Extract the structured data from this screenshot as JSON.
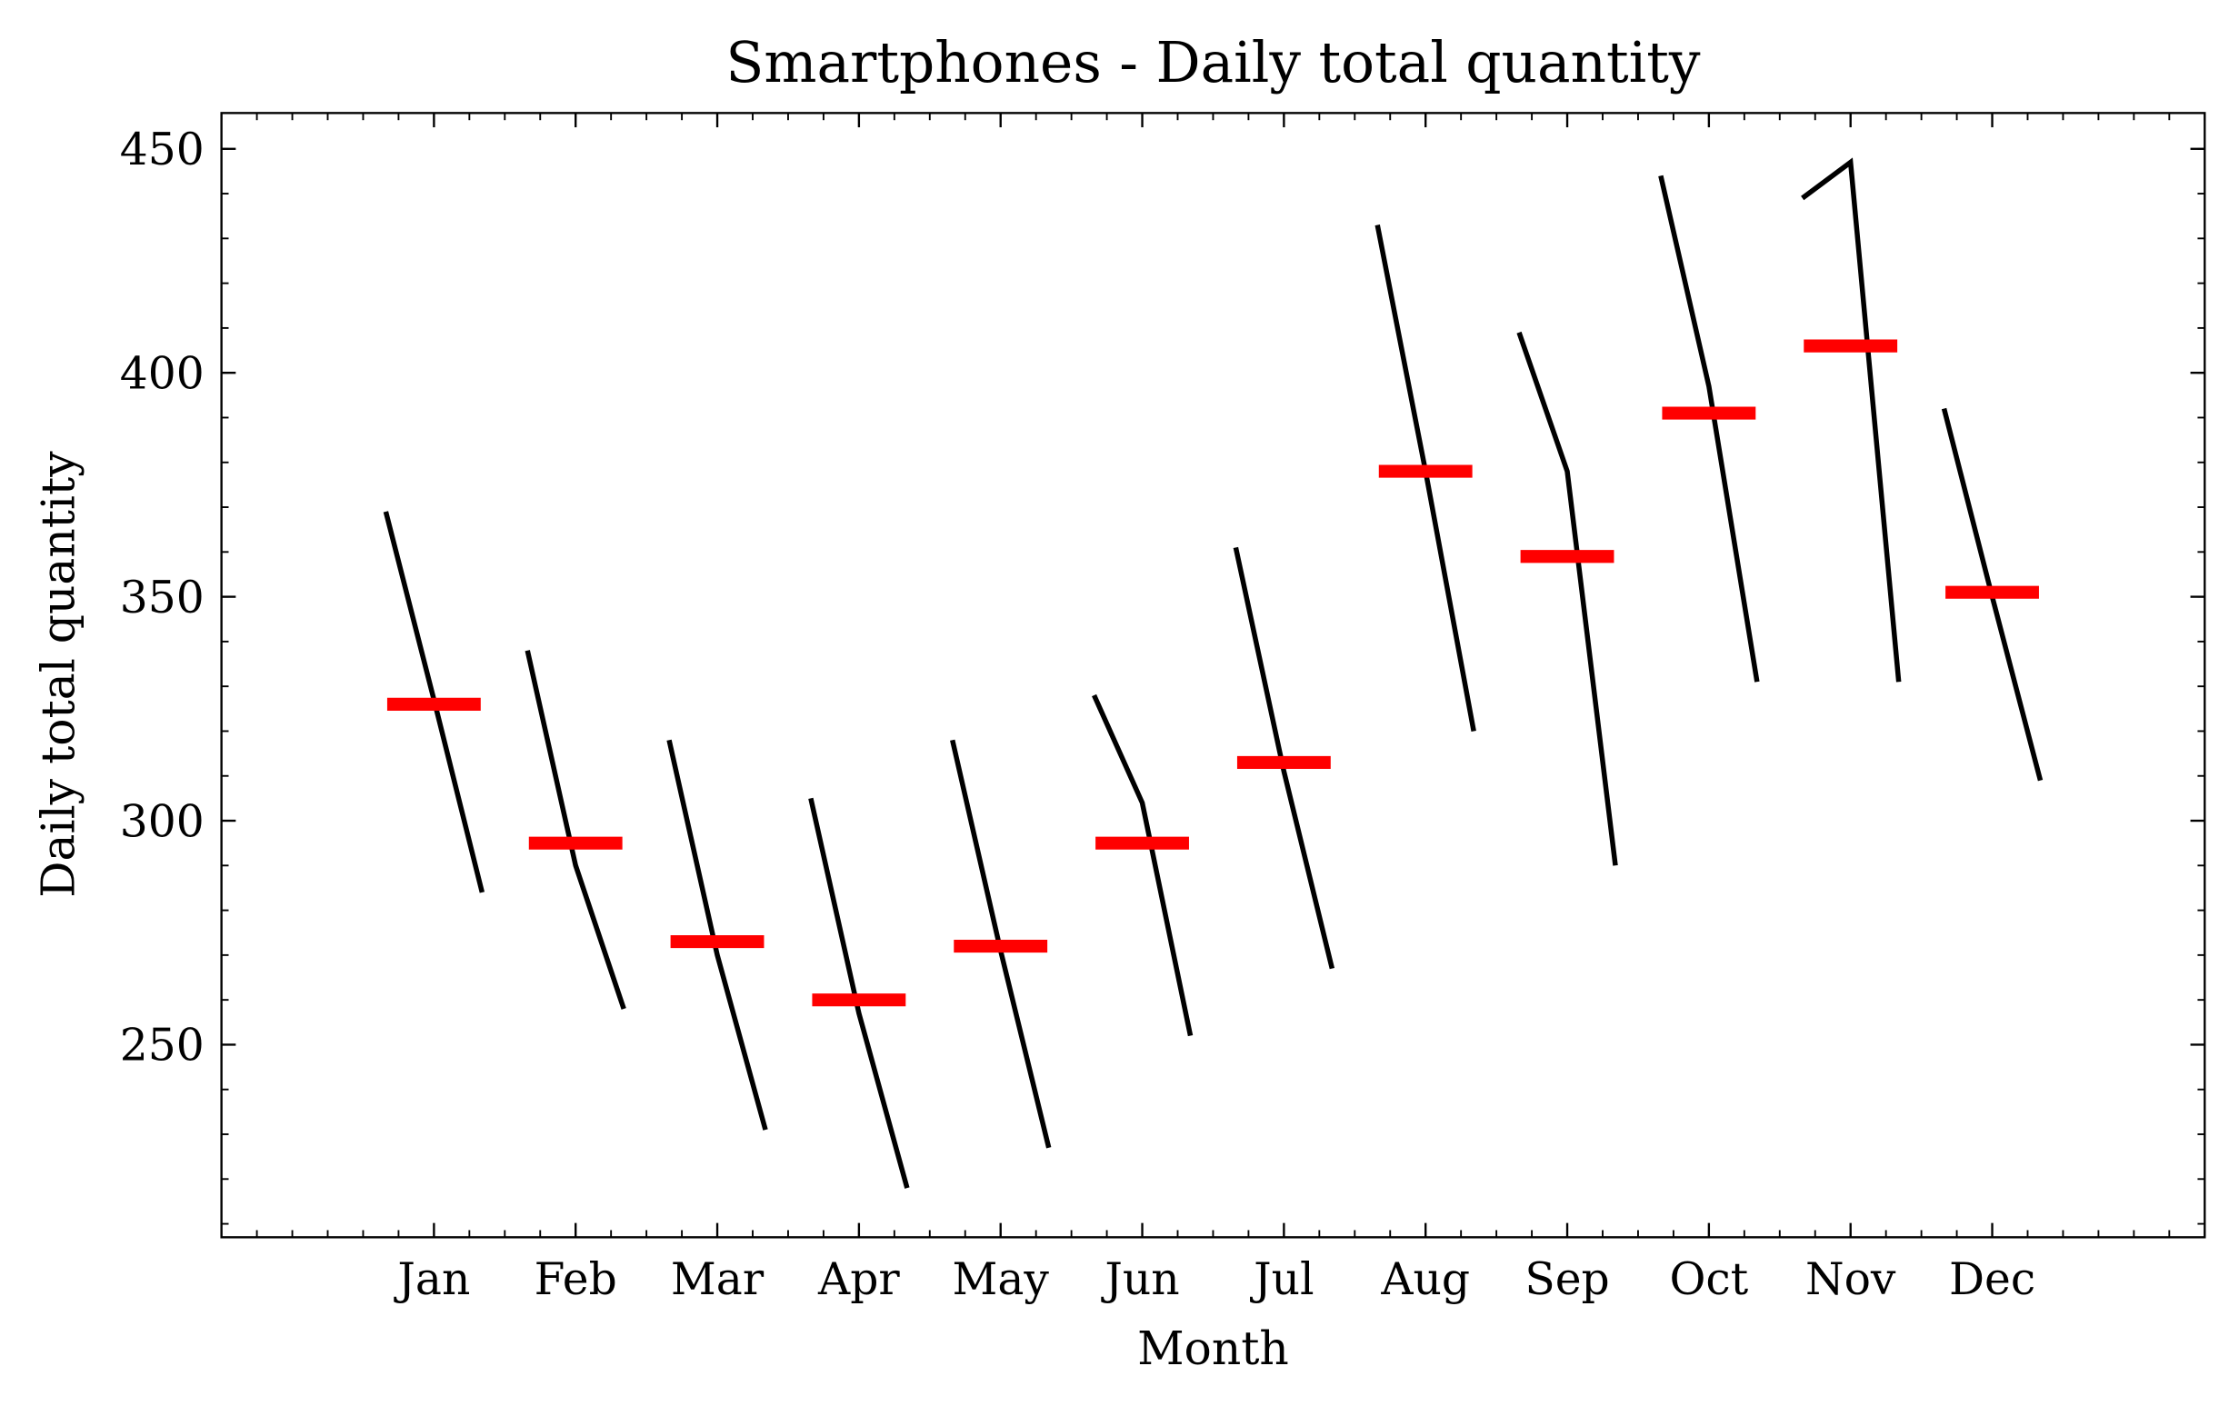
{
  "chart_data": {
    "type": "month_plot",
    "title": "Smartphones - Daily total quantity",
    "x_label": "Month",
    "y_label": "Daily total quantity",
    "categories": [
      "Jan",
      "Feb",
      "Mar",
      "Apr",
      "May",
      "Jun",
      "Jul",
      "Aug",
      "Sep",
      "Oct",
      "Nov",
      "Dec"
    ],
    "values": [
      [
        369,
        327,
        284
      ],
      [
        338,
        290,
        258
      ],
      [
        318,
        270,
        231
      ],
      [
        305,
        257,
        218
      ],
      [
        318,
        271,
        227
      ],
      [
        328,
        304,
        252
      ],
      [
        361,
        311,
        267
      ],
      [
        433,
        378,
        320
      ],
      [
        409,
        378,
        290
      ],
      [
        444,
        397,
        331
      ],
      [
        439,
        447,
        331
      ],
      [
        392,
        350,
        309
      ]
    ],
    "means": [
      326,
      295,
      273,
      260,
      272,
      295,
      313,
      378,
      359,
      391,
      406,
      351
    ],
    "color": "#000000",
    "mean_color": "#ff0000",
    "xlim": [
      -1.5,
      12.5
    ],
    "ylim": [
      207,
      458
    ],
    "yticks": [
      250,
      300,
      350,
      400,
      450
    ]
  }
}
